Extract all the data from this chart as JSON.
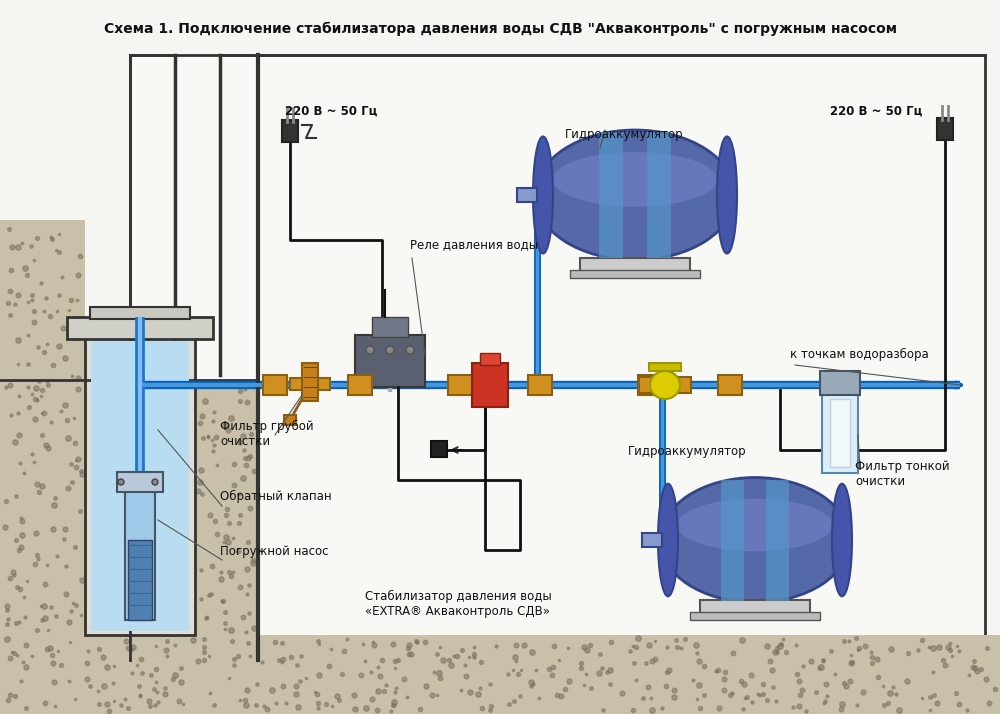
{
  "title": "Схема 1. Подключение стабилизатора давления воды СДВ \"Акваконтроль\" с погружным насосом",
  "bg_color": "#f5f5f2",
  "box_bg": "#ffffff",
  "box_edge": "#333333",
  "soil_color": "#c8c0a8",
  "soil_dot_color": "#7a7060",
  "pipe_blue": "#1a7acc",
  "pipe_blue_light": "#4499dd",
  "cable_color": "#111111",
  "brass_color": "#c8921c",
  "brass_edge": "#8B6010",
  "hydro_body": "#5568a8",
  "hydro_band": "#4488cc",
  "labels": {
    "title": "Схема 1. Подключение стабилизатора давления воды СДВ \"Акваконтроль\" с погружным насосом",
    "power1": "220 В ~ 50 Гц",
    "power2": "220 В ~ 50 Гц",
    "relay": "Реле давления воды",
    "hydro1": "Гидроаккумулятор",
    "hydro2": "Гидроаккумулятор",
    "filter_rough": "Фильтр грубой\nочистки",
    "filter_fine": "Фильтр тонкой\nочистки",
    "check_valve": "Обратный клапан",
    "submersible": "Погружной насос",
    "stabilizer": "Стабилизатор давления воды\n«EXTRA® Акваконтроль СДВ»",
    "water_points": "к точкам водоразбора"
  }
}
